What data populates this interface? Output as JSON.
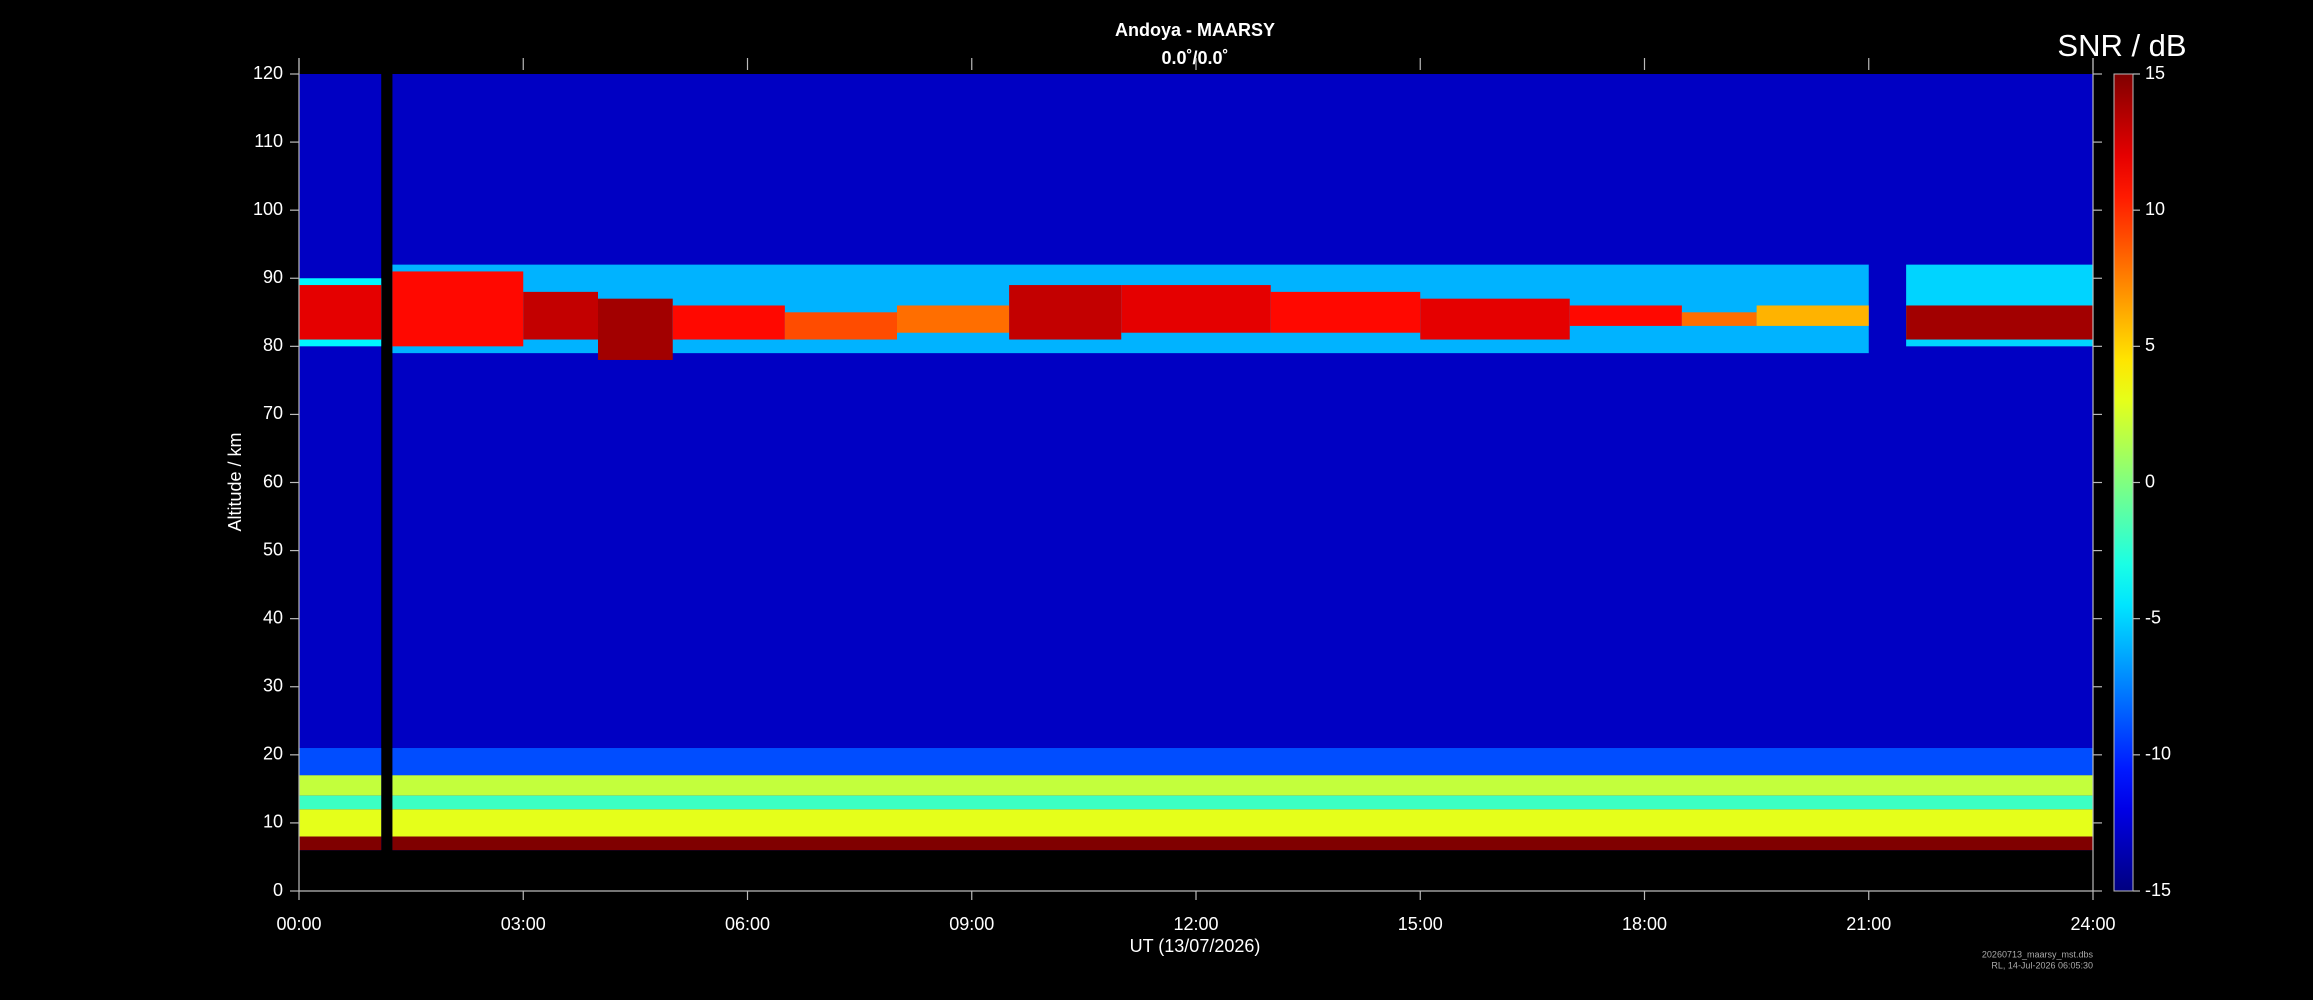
{
  "chart_data": {
    "type": "heatmap",
    "title": "Andoya - MAARSY",
    "subtitle": "0.0˚/0.0˚",
    "xlabel": "UT (13/07/2026)",
    "ylabel": "Altitude / km",
    "colorbar_label": "SNR / dB",
    "xlim": [
      0,
      24
    ],
    "xticks": [
      {
        "value": 0,
        "label": "00:00"
      },
      {
        "value": 3,
        "label": "03:00"
      },
      {
        "value": 6,
        "label": "06:00"
      },
      {
        "value": 9,
        "label": "09:00"
      },
      {
        "value": 12,
        "label": "12:00"
      },
      {
        "value": 15,
        "label": "15:00"
      },
      {
        "value": 18,
        "label": "18:00"
      },
      {
        "value": 21,
        "label": "21:00"
      },
      {
        "value": 24,
        "label": "24:00"
      }
    ],
    "ylim": [
      0,
      120
    ],
    "yticks": [
      0,
      10,
      20,
      30,
      40,
      50,
      60,
      70,
      80,
      90,
      100,
      110,
      120
    ],
    "clim": [
      -15,
      15
    ],
    "cticks": [
      -15,
      -10,
      -5,
      0,
      5,
      10,
      15
    ],
    "colormap": "jet",
    "cells": {
      "t0": [
        0,
        1.25,
        0,
        1.25,
        0,
        1.25,
        0,
        1.25,
        0,
        1.25,
        0,
        1.25,
        0,
        1.25,
        21.5,
        0,
        1.25,
        3,
        4,
        5,
        6.5,
        8,
        9.5,
        11,
        13,
        15,
        17,
        18.5,
        19.5,
        21.5
      ],
      "t1": [
        1.1,
        24,
        1.1,
        24,
        1.1,
        24,
        1.1,
        24,
        1.1,
        24,
        1.1,
        24,
        1.1,
        21,
        24,
        1.1,
        3,
        4,
        5,
        6.5,
        8,
        9.5,
        11,
        13,
        15,
        17,
        18.5,
        19.5,
        21,
        24
      ],
      "alt0": [
        6,
        6,
        17,
        17,
        14,
        14,
        12,
        12,
        8,
        8,
        6,
        6,
        80,
        79,
        80,
        81,
        80,
        81,
        78,
        81,
        81,
        82,
        81,
        82,
        82,
        81,
        83,
        83,
        83,
        81
      ],
      "alt1": [
        120,
        120,
        21,
        21,
        17,
        17,
        14,
        14,
        12,
        12,
        8,
        8,
        90,
        92,
        92,
        89,
        91,
        88,
        87,
        86,
        85,
        86,
        89,
        89,
        88,
        87,
        86,
        85,
        86,
        86
      ],
      "snr": [
        -13,
        -13,
        -9,
        -9,
        2,
        2,
        -2,
        -2,
        3,
        3,
        15,
        15,
        -4,
        -6,
        -5,
        12,
        11,
        13,
        14,
        11,
        9,
        8,
        13,
        12,
        11,
        12,
        11,
        8,
        6,
        14
      ]
    },
    "footer": [
      "20260713_maarsy_mst.dbs",
      "RL, 14-Jul-2026 06:05:30"
    ]
  }
}
